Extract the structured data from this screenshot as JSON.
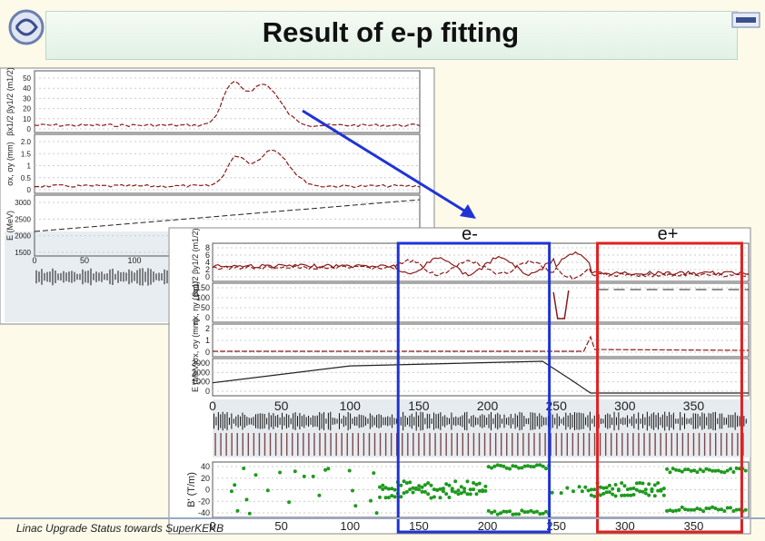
{
  "slide": {
    "title": "Result of e-p fitting",
    "footer": "Linac Upgrade Status towards SuperKEKB",
    "label_electron": "e-",
    "label_positron": "e+",
    "colors": {
      "electron_box": "#1f33d6",
      "positron_box": "#e02020",
      "arrow": "#1f33d6",
      "curve": "#8b1a1a",
      "magnet_points": "#1f9a1f"
    }
  },
  "chart_data": [
    {
      "type": "line",
      "panel": "back-plot",
      "rows": [
        {
          "ylabel": "βx1/2 βy1/2 (m1/2)",
          "ticks": [
            "50",
            "40",
            "30",
            "20",
            "10",
            "0"
          ]
        },
        {
          "ylabel": "σx, σy (mm)",
          "ticks": [
            "2.0",
            "1.5",
            "1",
            "0.5",
            "0"
          ]
        },
        {
          "ylabel": "E (MeV)",
          "ticks": [
            "3000",
            "2500",
            "2000",
            "1500"
          ]
        }
      ],
      "x_ticks": [
        "0",
        "50",
        "100"
      ]
    },
    {
      "type": "line",
      "panel": "front-plot",
      "xlim": [
        0,
        390
      ],
      "x_ticks": [
        "0",
        "50",
        "100",
        "150",
        "200",
        "250",
        "300",
        "350"
      ],
      "rows": [
        {
          "ylabel": "βx1/2 βy1/2 (m1/2)",
          "ticks": [
            "8",
            "6",
            "4",
            "2",
            "0"
          ]
        },
        {
          "ylabel": "ηx, ηy (mm)",
          "ticks": [
            "150",
            "100",
            "50",
            "0"
          ]
        },
        {
          "ylabel": "σx, σy (mm)",
          "ticks": [
            "2",
            "1",
            "0"
          ]
        },
        {
          "ylabel": "E (MeV)",
          "ticks": [
            "3000",
            "2000",
            "1000",
            "0"
          ]
        },
        {
          "ylabel": "B' (T/m)",
          "ticks": [
            "40",
            "20",
            "0",
            "-20",
            "-40"
          ],
          "ylim": [
            -40,
            40
          ]
        }
      ],
      "energy_profile": {
        "x": [
          0,
          100,
          240,
          260,
          275,
          390
        ],
        "y": [
          1100,
          2900,
          3400,
          1500,
          0,
          0
        ]
      },
      "regions": [
        {
          "name": "e-",
          "x": [
            135,
            245
          ]
        },
        {
          "name": "e+",
          "x": [
            280,
            385
          ]
        }
      ]
    }
  ]
}
